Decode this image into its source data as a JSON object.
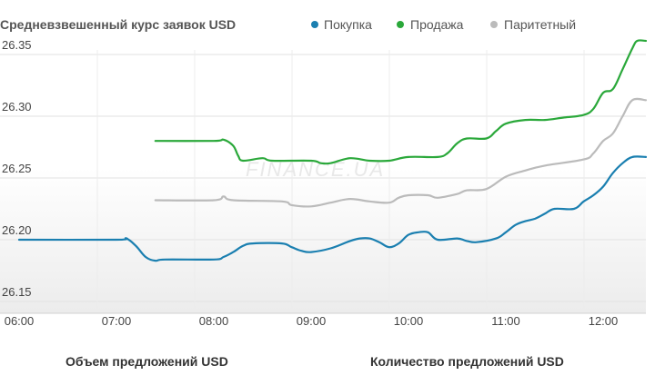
{
  "chart_data": {
    "type": "line",
    "title": "Средневзвешенный курс заявок USD",
    "watermark": "FINANCE.UA",
    "legend_position": "top",
    "grid": true,
    "xlabel": "",
    "ylabel": "",
    "xlim": [
      6.0,
      12.3
    ],
    "ylim": [
      26.14,
      26.385
    ],
    "x_ticks": [
      {
        "value": 6,
        "label": "06:00"
      },
      {
        "value": 7,
        "label": "07:00"
      },
      {
        "value": 8,
        "label": "08:00"
      },
      {
        "value": 9,
        "label": "09:00"
      },
      {
        "value": 10,
        "label": "10:00"
      },
      {
        "value": 11,
        "label": "11:00"
      },
      {
        "value": 12,
        "label": "12:00"
      }
    ],
    "y_ticks": [
      {
        "value": 26.15,
        "label": "26.15"
      },
      {
        "value": 26.2,
        "label": "26.20"
      },
      {
        "value": 26.25,
        "label": "26.25"
      },
      {
        "value": 26.3,
        "label": "26.30"
      },
      {
        "value": 26.35,
        "label": "26.35"
      }
    ],
    "series": [
      {
        "name": "Покупка",
        "color": "#1a7fb0",
        "points": [
          [
            6.0,
            26.2
          ],
          [
            7.0,
            26.2
          ],
          [
            7.1,
            26.201
          ],
          [
            7.2,
            26.195
          ],
          [
            7.3,
            26.186
          ],
          [
            7.4,
            26.183
          ],
          [
            7.5,
            26.184
          ],
          [
            8.0,
            26.184
          ],
          [
            8.1,
            26.186
          ],
          [
            8.2,
            26.19
          ],
          [
            8.3,
            26.195
          ],
          [
            8.4,
            26.197
          ],
          [
            8.7,
            26.197
          ],
          [
            8.8,
            26.194
          ],
          [
            8.9,
            26.191
          ],
          [
            9.0,
            26.19
          ],
          [
            9.2,
            26.193
          ],
          [
            9.4,
            26.199
          ],
          [
            9.5,
            26.201
          ],
          [
            9.6,
            26.201
          ],
          [
            9.7,
            26.198
          ],
          [
            9.8,
            26.194
          ],
          [
            9.9,
            26.197
          ],
          [
            10.0,
            26.204
          ],
          [
            10.1,
            26.206
          ],
          [
            10.2,
            26.206
          ],
          [
            10.3,
            26.2
          ],
          [
            10.5,
            26.201
          ],
          [
            10.6,
            26.199
          ],
          [
            10.7,
            26.198
          ],
          [
            10.9,
            26.201
          ],
          [
            11.0,
            26.206
          ],
          [
            11.1,
            26.212
          ],
          [
            11.2,
            26.215
          ],
          [
            11.3,
            26.217
          ],
          [
            11.4,
            26.221
          ],
          [
            11.5,
            26.225
          ],
          [
            11.7,
            26.225
          ],
          [
            11.8,
            26.231
          ],
          [
            11.9,
            26.236
          ],
          [
            12.0,
            26.243
          ],
          [
            12.1,
            26.254
          ],
          [
            12.2,
            26.262
          ],
          [
            12.3,
            26.267
          ],
          [
            12.45,
            26.267
          ]
        ]
      },
      {
        "name": "Продажа",
        "color": "#2aa83a",
        "points": [
          [
            7.4,
            26.28
          ],
          [
            8.0,
            26.28
          ],
          [
            8.1,
            26.281
          ],
          [
            8.2,
            26.276
          ],
          [
            8.25,
            26.268
          ],
          [
            8.3,
            26.264
          ],
          [
            8.5,
            26.266
          ],
          [
            8.6,
            26.264
          ],
          [
            9.0,
            26.264
          ],
          [
            9.1,
            26.262
          ],
          [
            9.2,
            26.262
          ],
          [
            9.4,
            26.266
          ],
          [
            9.6,
            26.264
          ],
          [
            9.8,
            26.264
          ],
          [
            10.0,
            26.267
          ],
          [
            10.3,
            26.267
          ],
          [
            10.4,
            26.27
          ],
          [
            10.5,
            26.278
          ],
          [
            10.6,
            26.282
          ],
          [
            10.8,
            26.282
          ],
          [
            10.9,
            26.288
          ],
          [
            11.0,
            26.294
          ],
          [
            11.2,
            26.297
          ],
          [
            11.4,
            26.297
          ],
          [
            11.6,
            26.299
          ],
          [
            11.8,
            26.301
          ],
          [
            11.9,
            26.306
          ],
          [
            12.0,
            26.319
          ],
          [
            12.1,
            26.322
          ],
          [
            12.2,
            26.338
          ],
          [
            12.3,
            26.355
          ],
          [
            12.35,
            26.361
          ],
          [
            12.45,
            26.361
          ]
        ]
      },
      {
        "name": "Паритетный",
        "color": "#bbbbbb",
        "points": [
          [
            7.4,
            26.232
          ],
          [
            8.0,
            26.232
          ],
          [
            8.1,
            26.235
          ],
          [
            8.2,
            26.232
          ],
          [
            8.7,
            26.231
          ],
          [
            8.8,
            26.228
          ],
          [
            9.0,
            26.227
          ],
          [
            9.2,
            26.23
          ],
          [
            9.4,
            26.233
          ],
          [
            9.6,
            26.231
          ],
          [
            9.8,
            26.23
          ],
          [
            9.9,
            26.234
          ],
          [
            10.0,
            26.236
          ],
          [
            10.2,
            26.236
          ],
          [
            10.3,
            26.234
          ],
          [
            10.5,
            26.237
          ],
          [
            10.6,
            26.24
          ],
          [
            10.8,
            26.241
          ],
          [
            11.0,
            26.251
          ],
          [
            11.2,
            26.256
          ],
          [
            11.4,
            26.26
          ],
          [
            11.8,
            26.265
          ],
          [
            11.9,
            26.27
          ],
          [
            12.0,
            26.28
          ],
          [
            12.1,
            26.286
          ],
          [
            12.2,
            26.3
          ],
          [
            12.3,
            26.313
          ],
          [
            12.45,
            26.313
          ]
        ]
      }
    ]
  },
  "captions": {
    "left": "Объем предложений USD",
    "right": "Количество предложений USD"
  }
}
